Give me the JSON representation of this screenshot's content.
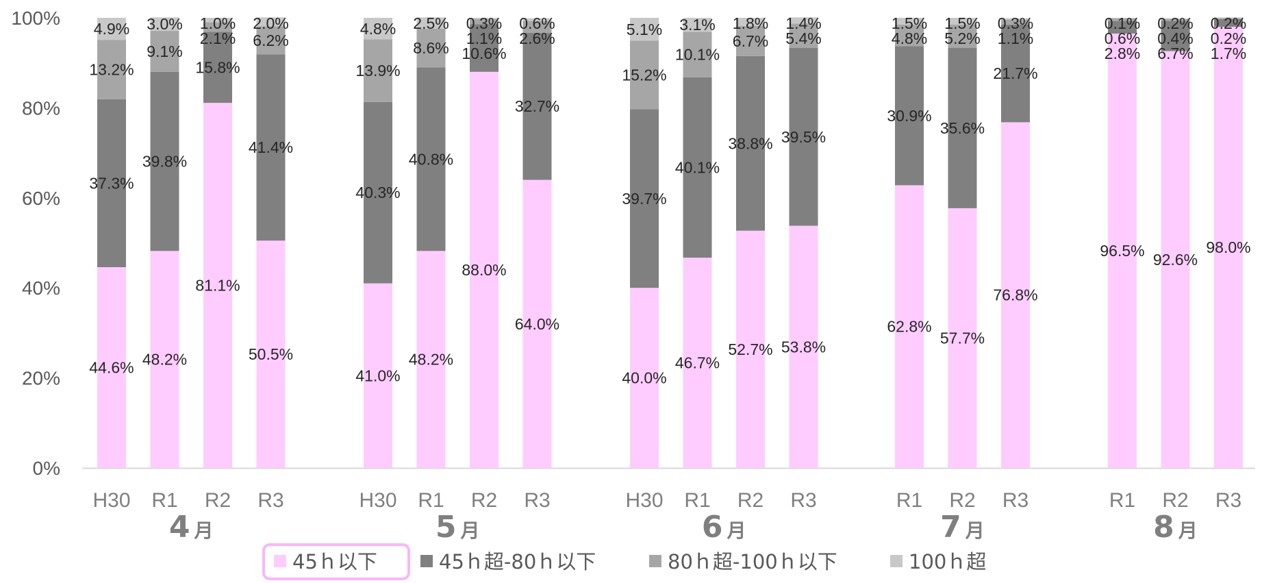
{
  "chart_data": {
    "type": "bar",
    "stacked": true,
    "ylim": [
      0,
      100
    ],
    "y_ticks": [
      "0%",
      "20%",
      "40%",
      "60%",
      "80%",
      "100%"
    ],
    "grid": false,
    "legend_position": "bottom",
    "month_unit": "月",
    "groups": [
      {
        "month": "4",
        "bars": [
          {
            "label": "H30",
            "values": [
              44.6,
              37.3,
              13.2,
              4.9
            ]
          },
          {
            "label": "R1",
            "values": [
              48.2,
              39.8,
              9.1,
              3.0
            ]
          },
          {
            "label": "R2",
            "values": [
              81.1,
              15.8,
              2.1,
              1.0
            ]
          },
          {
            "label": "R3",
            "values": [
              50.5,
              41.4,
              6.2,
              2.0
            ]
          }
        ]
      },
      {
        "month": "5",
        "bars": [
          {
            "label": "H30",
            "values": [
              41.0,
              40.3,
              13.9,
              4.8
            ]
          },
          {
            "label": "R1",
            "values": [
              48.2,
              40.8,
              8.6,
              2.5
            ]
          },
          {
            "label": "R2",
            "values": [
              88.0,
              10.6,
              1.1,
              0.3
            ]
          },
          {
            "label": "R3",
            "values": [
              64.0,
              32.7,
              2.6,
              0.6
            ]
          }
        ]
      },
      {
        "month": "6",
        "bars": [
          {
            "label": "H30",
            "values": [
              40.0,
              39.7,
              15.2,
              5.1
            ]
          },
          {
            "label": "R1",
            "values": [
              46.7,
              40.1,
              10.1,
              3.1
            ]
          },
          {
            "label": "R2",
            "values": [
              52.7,
              38.8,
              6.7,
              1.8
            ]
          },
          {
            "label": "R3",
            "values": [
              53.8,
              39.5,
              5.4,
              1.4
            ]
          }
        ]
      },
      {
        "month": "7",
        "bars": [
          {
            "label": "R1",
            "values": [
              62.8,
              30.9,
              4.8,
              1.5
            ]
          },
          {
            "label": "R2",
            "values": [
              57.7,
              35.6,
              5.2,
              1.5
            ]
          },
          {
            "label": "R3",
            "values": [
              76.8,
              21.7,
              1.1,
              0.3
            ]
          }
        ]
      },
      {
        "month": "8",
        "bars": [
          {
            "label": "R1",
            "values": [
              96.5,
              2.8,
              0.6,
              0.1
            ]
          },
          {
            "label": "R2",
            "values": [
              92.6,
              6.7,
              0.4,
              0.2
            ]
          },
          {
            "label": "R3",
            "values": [
              98.0,
              1.7,
              0.2,
              0.2
            ]
          }
        ]
      }
    ],
    "series": [
      {
        "name": "45ｈ以下",
        "color": "#ffccff"
      },
      {
        "name": "45ｈ超-80ｈ以下",
        "color": "#808080"
      },
      {
        "name": "80ｈ超-100ｈ以下",
        "color": "#a6a6a6"
      },
      {
        "name": "100ｈ超",
        "color": "#c8c8c8"
      }
    ],
    "highlighted_legend_entry": "45ｈ以下",
    "highlight_color": "#f9b6f9"
  }
}
